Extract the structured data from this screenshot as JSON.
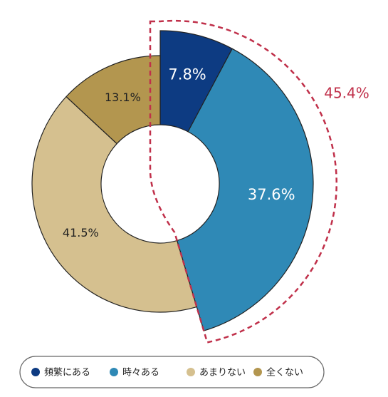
{
  "chart_data": {
    "type": "donut",
    "categories": [
      "頻繁にある",
      "時々ある",
      "あまりない",
      "全くない"
    ],
    "values": [
      7.8,
      37.6,
      41.5,
      13.1
    ],
    "value_labels": [
      "7.8%",
      "37.6%",
      "41.5%",
      "13.1%"
    ],
    "colors": [
      "#0d3b82",
      "#2f89b6",
      "#d5c08f",
      "#b3964f"
    ],
    "label_colors": [
      "#ffffff",
      "#ffffff",
      "#222222",
      "#222222"
    ],
    "highlight": {
      "count": 2,
      "label": "45.4%",
      "color": "#c0304a"
    }
  }
}
